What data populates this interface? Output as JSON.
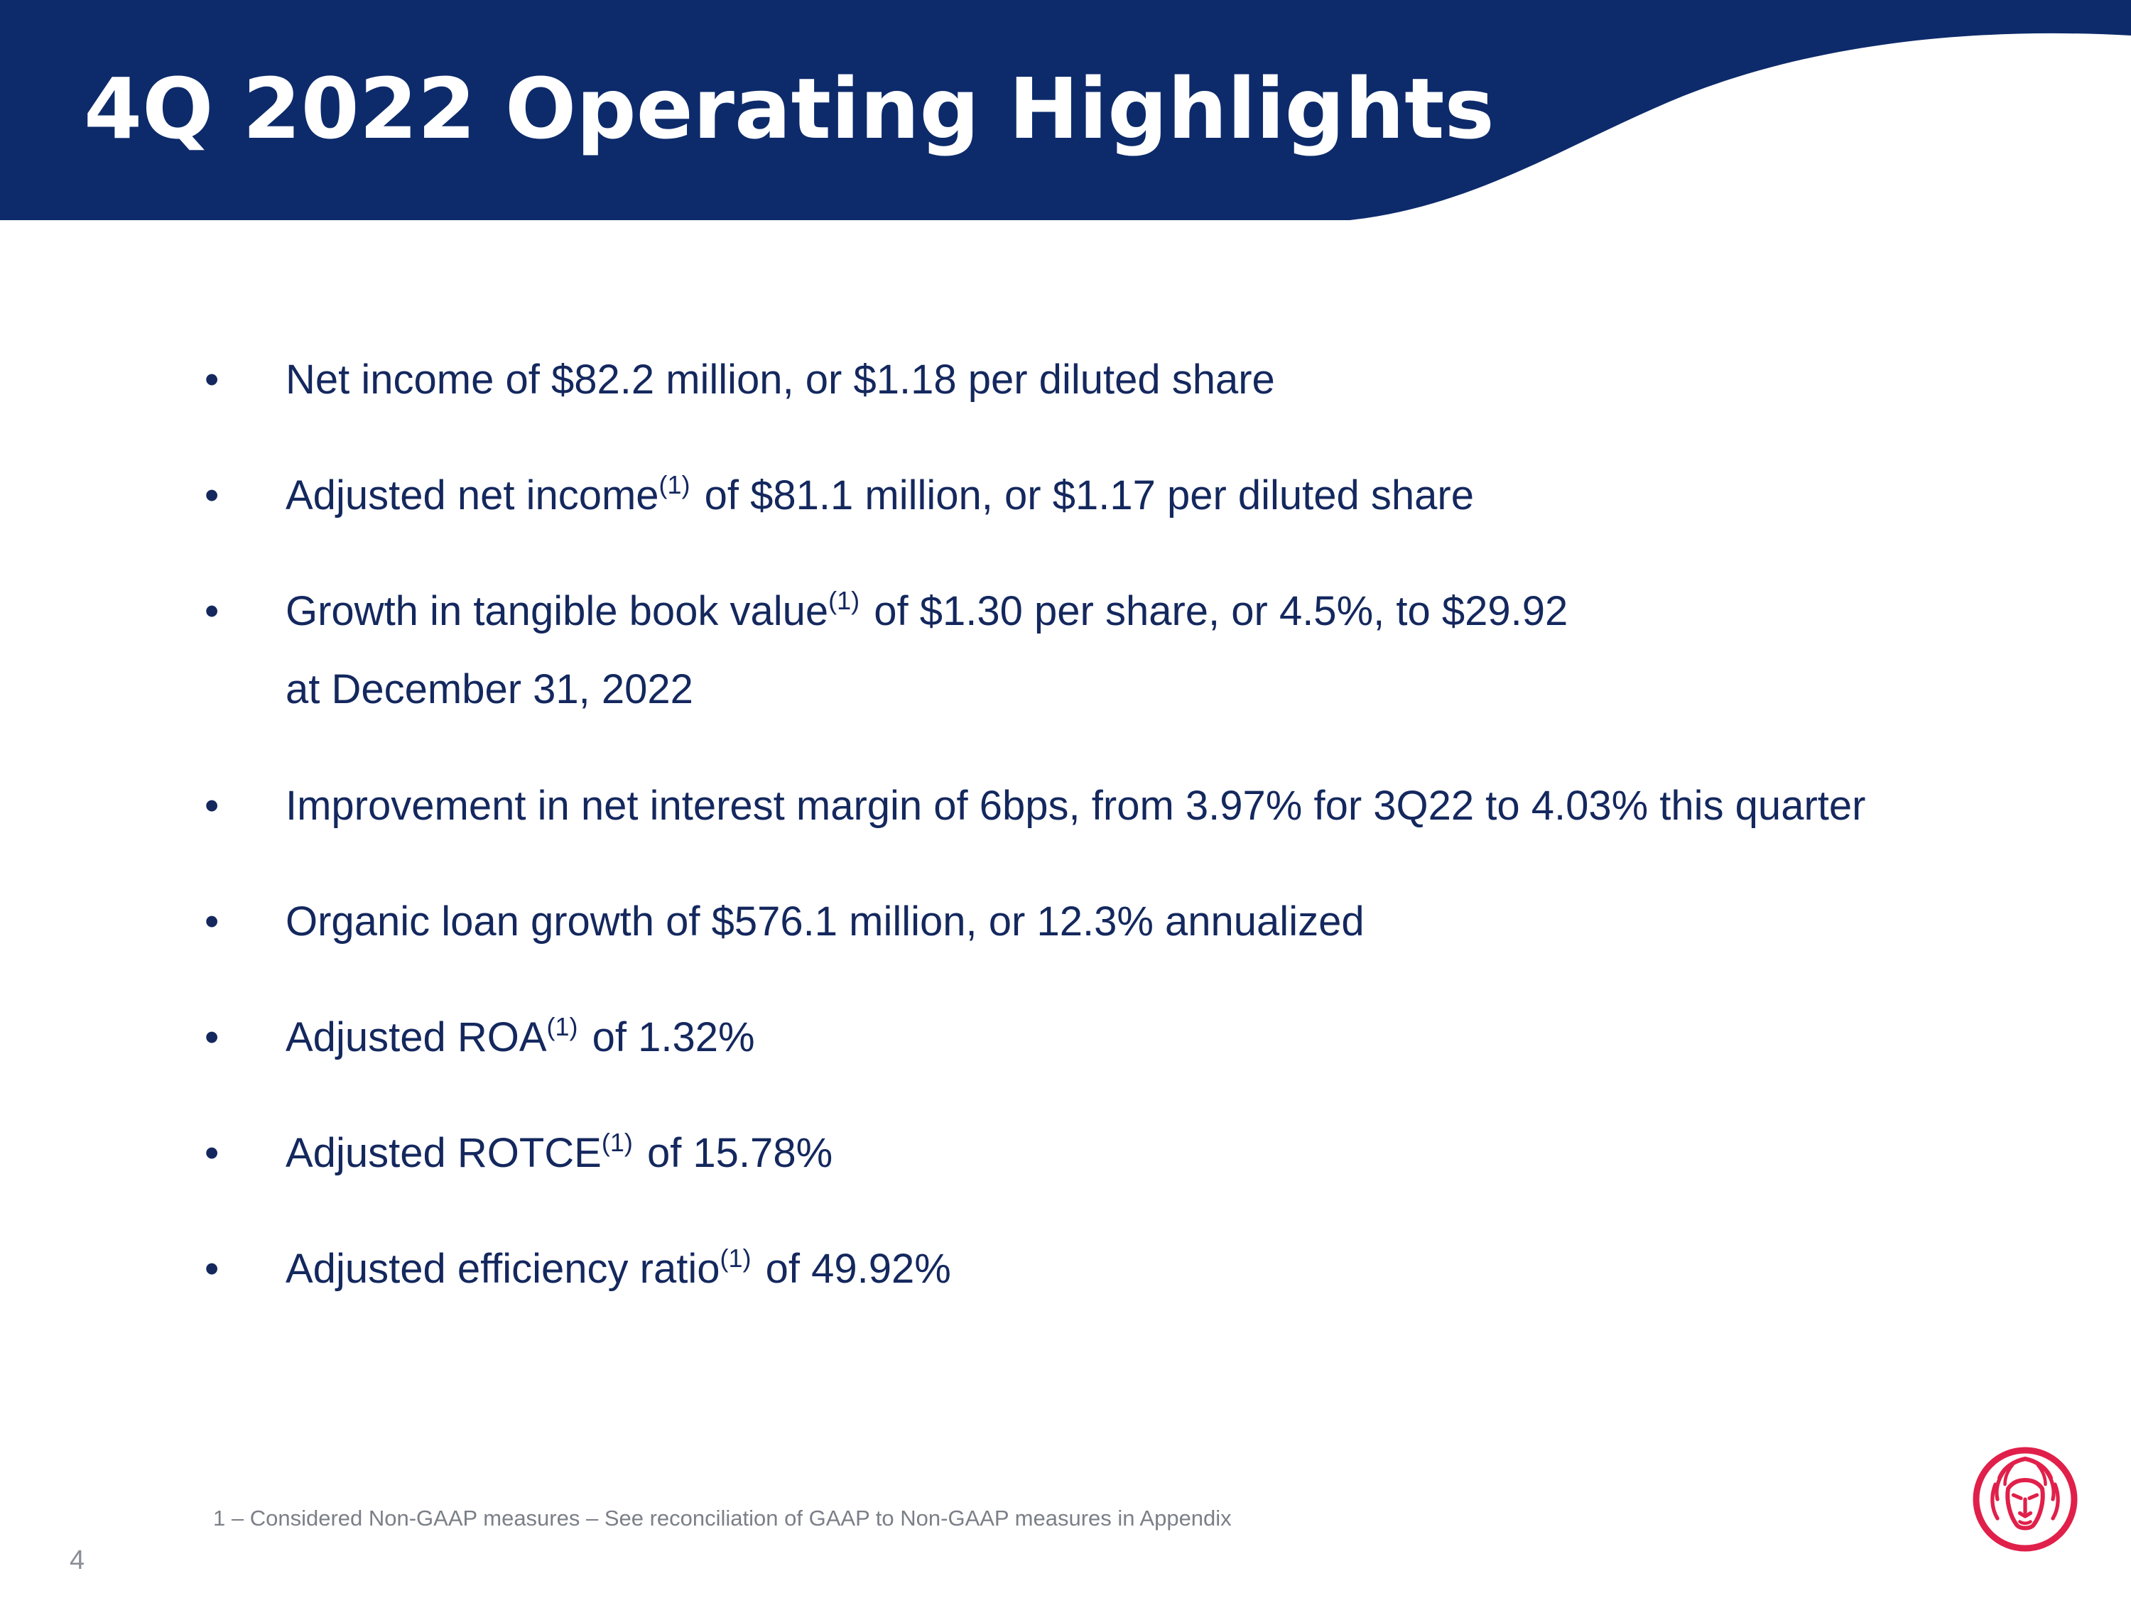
{
  "header": {
    "title": "4Q 2022 Operating Highlights",
    "band_color": "#0d2b6b"
  },
  "bullets": [
    {
      "text": "Net income of $82.2 million, or $1.18 per diluted share"
    },
    {
      "pre": "Adjusted net income",
      "sup": "(1)",
      "post": " of $81.1 million, or $1.17 per diluted share"
    },
    {
      "pre": "Growth in tangible book value",
      "sup": "(1)",
      "post": " of $1.30 per share, or 4.5%, to $29.92",
      "line2": "at December 31, 2022"
    },
    {
      "text": "Improvement in net interest margin of 6bps, from 3.97% for 3Q22 to 4.03% this quarter"
    },
    {
      "text": "Organic loan growth of $576.1 million, or 12.3% annualized"
    },
    {
      "pre": "Adjusted ROA",
      "sup": "(1)",
      "post": " of 1.32%"
    },
    {
      "pre": "Adjusted ROTCE",
      "sup": "(1)",
      "post": " of 15.78%"
    },
    {
      "pre": "Adjusted efficiency ratio",
      "sup": "(1)",
      "post": " of 49.92%"
    }
  ],
  "bullet_glyph": "•",
  "footnote": "1 – Considered Non-GAAP measures – See reconciliation of GAAP to Non-GAAP measures in Appendix",
  "page_number": "4",
  "colors": {
    "text": "#14285e",
    "footnote": "#7b7f87",
    "logo": "#e0204a"
  },
  "logo": {
    "icon": "lion-head-icon"
  }
}
